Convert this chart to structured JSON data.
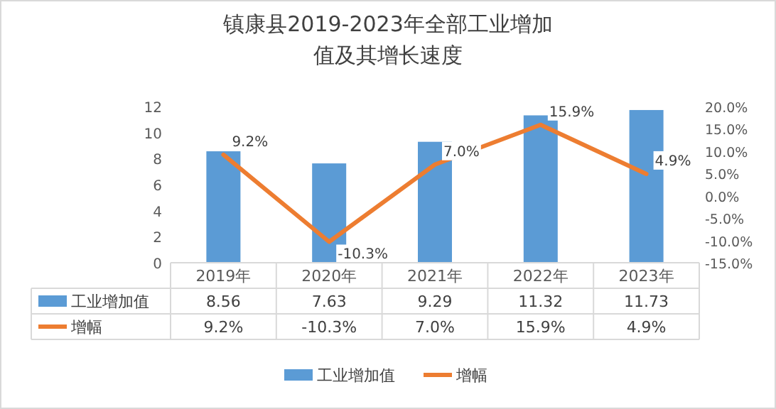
{
  "chart_data": {
    "type": "bar",
    "title": "镇康县2019-2023年全部工业增加值及其增长速度",
    "categories": [
      "2019年",
      "2020年",
      "2021年",
      "2022年",
      "2023年"
    ],
    "series": [
      {
        "name": "工业增加值",
        "type": "bar",
        "color": "#5b9bd5",
        "values": [
          8.56,
          7.63,
          9.29,
          11.32,
          11.73
        ],
        "value_labels": [
          "8.56",
          "7.63",
          "9.29",
          "11.32",
          "11.73"
        ]
      },
      {
        "name": "增幅",
        "type": "line",
        "axis": "y2",
        "color": "#ed7d31",
        "values": [
          9.2,
          -10.3,
          7.0,
          15.9,
          4.9
        ],
        "value_labels": [
          "9.2%",
          "-10.3%",
          "7.0%",
          "15.9%",
          "4.9%"
        ]
      }
    ],
    "ylim": [
      0,
      12
    ],
    "yticks": [
      0,
      2,
      4,
      6,
      8,
      10,
      12
    ],
    "y2lim": [
      -15,
      20
    ],
    "y2ticks": [
      {
        "value": -15,
        "label": "-15.0%"
      },
      {
        "value": -10,
        "label": "-10.0%"
      },
      {
        "value": -5,
        "label": "-5.0%"
      },
      {
        "value": 0,
        "label": "0.0%"
      },
      {
        "value": 5,
        "label": "5.0%"
      },
      {
        "value": 10,
        "label": "10.0%"
      },
      {
        "value": 15,
        "label": "15.0%"
      },
      {
        "value": 20,
        "label": "20.0%"
      }
    ],
    "legend": "bottom",
    "marker": "none",
    "line_style": "solid"
  }
}
